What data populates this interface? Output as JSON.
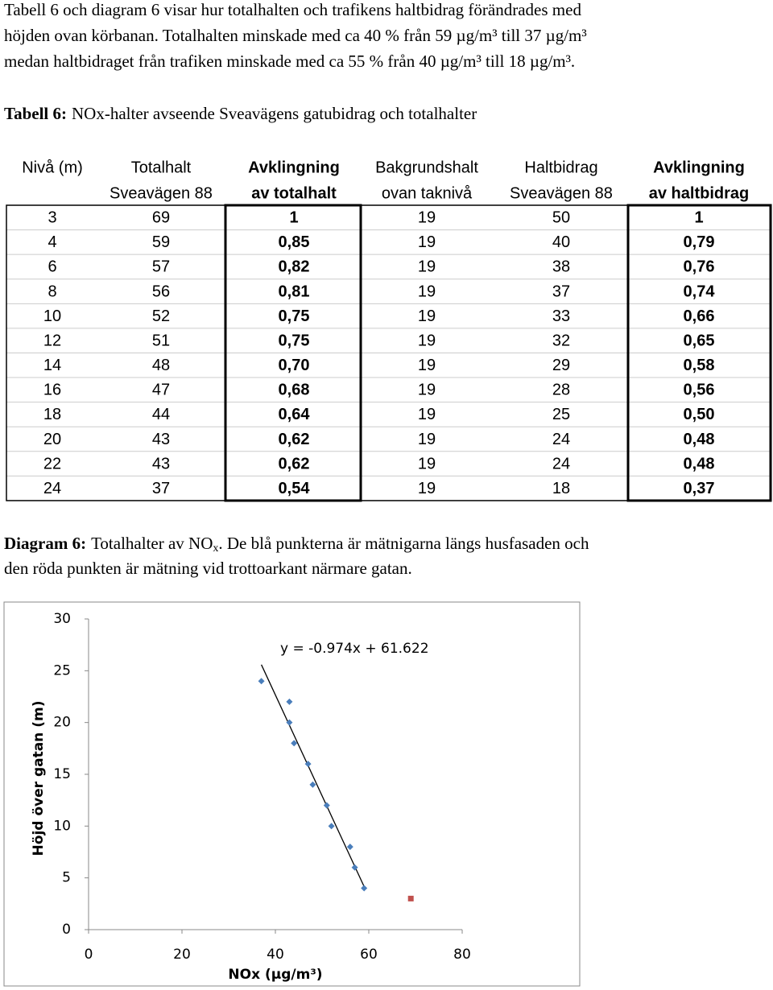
{
  "intro": [
    "Tabell 6 och diagram 6 visar hur totalhalten och trafikens haltbidrag förändrades med",
    "höjden ovan körbanan. Totalhalten minskade med ca 40 % från 59 µg/m³ till 37 µg/m³",
    "medan haltbidraget från trafiken minskade med ca 55 %  från 40 µg/m³ till 18 µg/m³."
  ],
  "table": {
    "caption_label": "Tabell 6:",
    "caption": "NOx-halter avseende Sveavägens gatubidrag och totalhalter",
    "columns": [
      {
        "header": [
          "Nivå (m)"
        ],
        "bold": false
      },
      {
        "header": [
          "Totalhalt",
          "Sveavägen 88"
        ],
        "bold": false
      },
      {
        "header": [
          "Avklingning",
          "av totalhalt"
        ],
        "bold": true
      },
      {
        "header": [
          "Bakgrundshalt",
          "ovan taknivå"
        ],
        "bold": false
      },
      {
        "header": [
          "Haltbidrag",
          "Sveavägen 88"
        ],
        "bold": false
      },
      {
        "header": [
          "Avklingning",
          "av haltbidrag"
        ],
        "bold": true
      }
    ],
    "rows": [
      [
        "3",
        "69",
        "1",
        "19",
        "50",
        "1"
      ],
      [
        "4",
        "59",
        "0,85",
        "19",
        "40",
        "0,79"
      ],
      [
        "6",
        "57",
        "0,82",
        "19",
        "38",
        "0,76"
      ],
      [
        "8",
        "56",
        "0,81",
        "19",
        "37",
        "0,74"
      ],
      [
        "10",
        "52",
        "0,75",
        "19",
        "33",
        "0,66"
      ],
      [
        "12",
        "51",
        "0,75",
        "19",
        "32",
        "0,65"
      ],
      [
        "14",
        "48",
        "0,70",
        "19",
        "29",
        "0,58"
      ],
      [
        "16",
        "47",
        "0,68",
        "19",
        "28",
        "0,56"
      ],
      [
        "18",
        "44",
        "0,64",
        "19",
        "25",
        "0,50"
      ],
      [
        "20",
        "43",
        "0,62",
        "19",
        "24",
        "0,48"
      ],
      [
        "22",
        "43",
        "0,62",
        "19",
        "24",
        "0,48"
      ],
      [
        "24",
        "37",
        "0,54",
        "19",
        "18",
        "0,37"
      ]
    ]
  },
  "diagram_caption": {
    "label": "Diagram 6:",
    "text": "Totalhalter av NO",
    "sub": "x",
    "rest": ". De blå punkterna är mätnigarna längs husfasaden och",
    "line2": "den röda punkten är mätning vid trottoarkant närmare gatan."
  },
  "chart_data": {
    "type": "scatter",
    "xlabel": "NOx (µg/m³)",
    "ylabel": "Höjd över gatan (m)",
    "xlim": [
      0,
      80
    ],
    "xticks": [
      0,
      20,
      40,
      60,
      80
    ],
    "ylim": [
      0,
      30
    ],
    "yticks": [
      0,
      5,
      10,
      15,
      20,
      25,
      30
    ],
    "series": [
      {
        "color": "#4a7ebb",
        "marker": "diamond",
        "x": [
          37,
          43,
          43,
          44,
          47,
          48,
          51,
          52,
          56,
          57,
          59
        ],
        "values": [
          24,
          22,
          20,
          18,
          16,
          14,
          12,
          10,
          8,
          6,
          4
        ]
      },
      {
        "color": "#c0504d",
        "marker": "square",
        "x": [
          69
        ],
        "values": [
          3
        ]
      }
    ],
    "trendline": {
      "label": "y = -0.974x + 61.622",
      "slope": -0.974,
      "intercept": 61.622,
      "x": [
        37,
        59
      ]
    }
  }
}
